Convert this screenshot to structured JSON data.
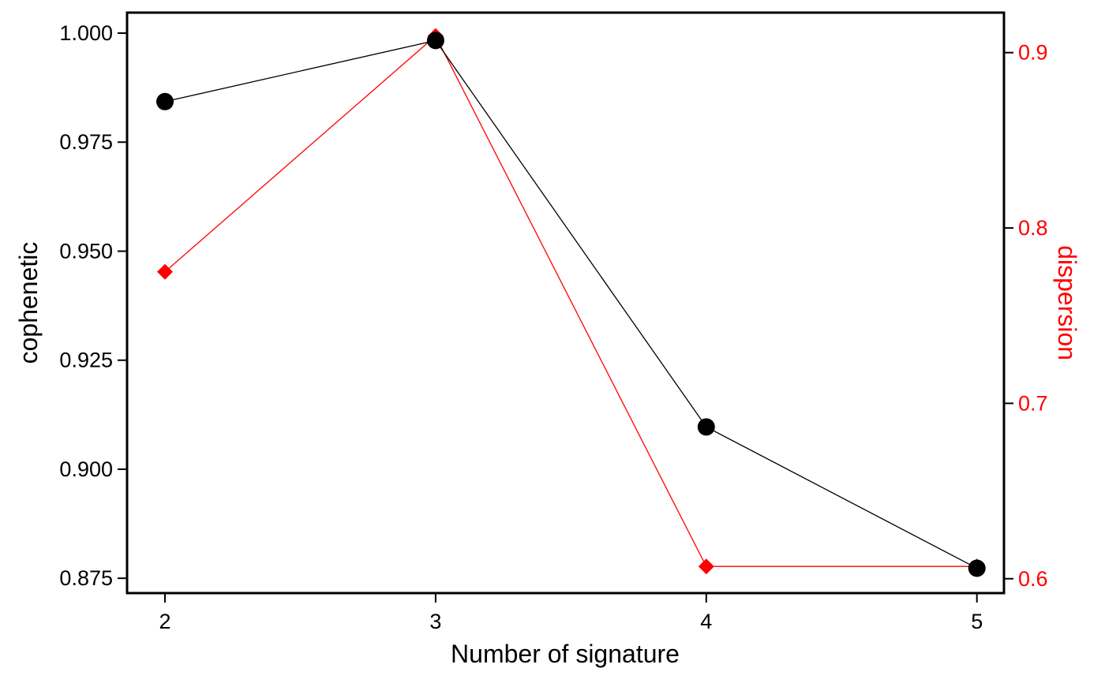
{
  "chart_data": {
    "type": "line",
    "xlabel": "Number of signature",
    "ylabel_left": "cophenetic",
    "ylabel_right": "dispersion",
    "x": [
      2,
      3,
      4,
      5
    ],
    "x_ticks": [
      "2",
      "3",
      "4",
      "5"
    ],
    "xlim": [
      1.86,
      5.1
    ],
    "y_left_ticks": [
      "0.875",
      "0.900",
      "0.925",
      "0.950",
      "0.975",
      "1.000"
    ],
    "y_left_lim": [
      0.8716,
      1.0047
    ],
    "y_right_ticks": [
      "0.6",
      "0.7",
      "0.8",
      "0.9"
    ],
    "y_right_lim": [
      0.5918,
      0.9228
    ],
    "grid": false,
    "series": [
      {
        "axis": "left",
        "marker": "circle",
        "color": "#000000",
        "values": [
          0.9843,
          0.9983,
          0.9097,
          0.8773
        ]
      },
      {
        "axis": "right",
        "marker": "diamond",
        "color": "#ff0000",
        "values": [
          0.775,
          0.9095,
          0.607,
          0.607
        ]
      }
    ]
  },
  "colors": {
    "left_axis": "#000000",
    "right_axis": "#ff0000"
  }
}
